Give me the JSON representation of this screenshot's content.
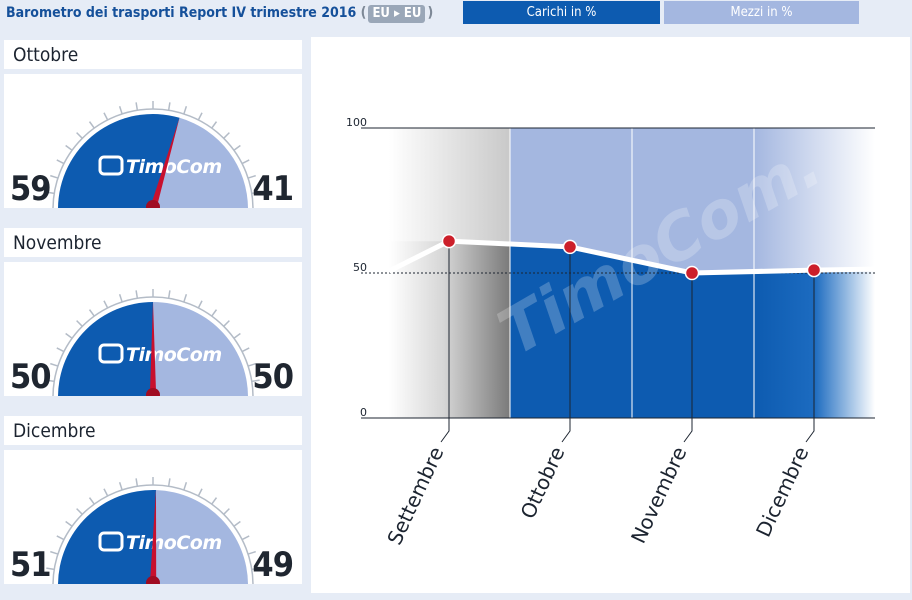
{
  "header": {
    "title": "Barometro dei trasporti Report IV trimestre 2016",
    "route_open": "(",
    "route_label": "EU ▸ EU",
    "route_close": ")"
  },
  "tabs": [
    {
      "label": "Carichi in %",
      "active": true
    },
    {
      "label": "Mezzi in %",
      "active": false
    }
  ],
  "brand": {
    "logo_text": "TimoCom",
    "watermark_text": "TimoCom."
  },
  "colors": {
    "carichi": "#0d5bb0",
    "mezzi": "#a4b7e0",
    "needle": "#c8102e",
    "line": "#ffffff",
    "point": "#cc1f2a"
  },
  "gauges": [
    {
      "month": "Ottobre",
      "left_value": "59",
      "right_value": "41",
      "carichi_pct": 59
    },
    {
      "month": "Novembre",
      "left_value": "50",
      "right_value": "50",
      "carichi_pct": 50
    },
    {
      "month": "Dicembre",
      "left_value": "51",
      "right_value": "49",
      "carichi_pct": 51
    }
  ],
  "chart_data": {
    "type": "line",
    "categories": [
      "Settembre",
      "Ottobre",
      "Novembre",
      "Dicembre"
    ],
    "series": [
      {
        "values": [
          61,
          59,
          50,
          51
        ]
      }
    ],
    "ylim": [
      0,
      100
    ],
    "yticks": [
      "0",
      "50",
      "100"
    ]
  }
}
